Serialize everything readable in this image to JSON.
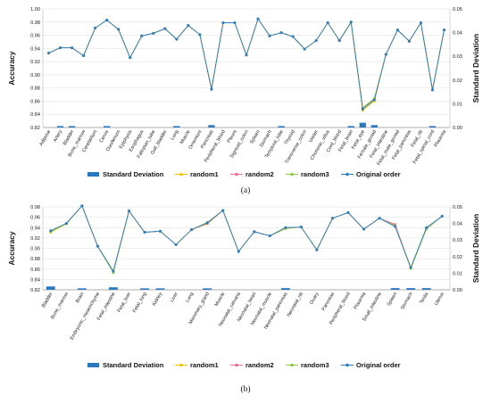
{
  "colors": {
    "std": "#2a78c0",
    "random1": "#f5c400",
    "random2": "#f06aa0",
    "random3": "#8ecb3c",
    "original": "#2b7cc7",
    "grid": "#dddddd"
  },
  "chart_data": [
    {
      "type": "line",
      "panel_label": "(a)",
      "ylabel": "Accuracy",
      "y2label": "Standard Deviation",
      "ylim": [
        0.82,
        1.0
      ],
      "yticks": [
        "0.82",
        "0.84",
        "0.86",
        "0.88",
        "0.90",
        "0.92",
        "0.94",
        "0.96",
        "0.98",
        "1.00"
      ],
      "y2lim": [
        0,
        0.05
      ],
      "y2ticks": [
        "0.00",
        "0.01",
        "0.02",
        "0.03",
        "0.04",
        "0.05"
      ],
      "legend": [
        "Standard Deviation",
        "random1",
        "random2",
        "random3",
        "Original order"
      ],
      "categories": [
        "Adipose",
        "Artery",
        "Bladder",
        "Bone_marrow",
        "Cerebellum",
        "Cervix",
        "Duodenum",
        "Epiphysis",
        "Esophagus",
        "Fallopian_tube",
        "Gall_bladder",
        "Lung",
        "Muscle",
        "Omentum",
        "Pancreas",
        "Peripheral_blood",
        "Pleura",
        "Sigmoid_colon",
        "Spleen",
        "Stomach",
        "Temporal_lobe",
        "Thyroid",
        "Transverse_colon",
        "Ureter",
        "Chorionic_villus",
        "Cord_blood",
        "Fetal_brain",
        "Fetal_eye",
        "Female_gonad",
        "Fetal_intestine",
        "Fetal_male_gonad",
        "Fetal_pancreas",
        "Fetal_rib",
        "Fetal_spinal_cord",
        "Placenta"
      ],
      "series": [
        {
          "name": "Original order",
          "values": [
            0.933,
            0.941,
            0.941,
            0.929,
            0.971,
            0.983,
            0.969,
            0.926,
            0.959,
            0.963,
            0.97,
            0.954,
            0.975,
            0.961,
            0.878,
            0.979,
            0.979,
            0.93,
            0.985,
            0.959,
            0.964,
            0.958,
            0.939,
            0.952,
            0.979,
            0.952,
            0.98,
            0.848,
            0.862,
            0.931,
            0.968,
            0.951,
            0.979,
            0.877,
            0.968
          ]
        },
        {
          "name": "random1",
          "values": [
            0.933,
            0.941,
            0.941,
            0.929,
            0.971,
            0.983,
            0.969,
            0.926,
            0.959,
            0.963,
            0.97,
            0.954,
            0.975,
            0.961,
            0.878,
            0.979,
            0.979,
            0.93,
            0.985,
            0.959,
            0.964,
            0.958,
            0.939,
            0.952,
            0.979,
            0.952,
            0.98,
            0.846,
            0.86,
            0.931,
            0.968,
            0.951,
            0.979,
            0.877,
            0.968
          ]
        },
        {
          "name": "random2",
          "values": [
            0.933,
            0.941,
            0.941,
            0.929,
            0.971,
            0.983,
            0.969,
            0.926,
            0.959,
            0.963,
            0.97,
            0.954,
            0.975,
            0.961,
            0.878,
            0.979,
            0.979,
            0.93,
            0.985,
            0.959,
            0.964,
            0.958,
            0.939,
            0.952,
            0.979,
            0.952,
            0.98,
            0.849,
            0.863,
            0.931,
            0.968,
            0.951,
            0.979,
            0.877,
            0.968
          ]
        },
        {
          "name": "random3",
          "values": [
            0.933,
            0.941,
            0.941,
            0.929,
            0.971,
            0.983,
            0.969,
            0.926,
            0.959,
            0.963,
            0.97,
            0.954,
            0.975,
            0.961,
            0.878,
            0.979,
            0.979,
            0.93,
            0.985,
            0.959,
            0.964,
            0.958,
            0.939,
            0.952,
            0.979,
            0.952,
            0.98,
            0.85,
            0.864,
            0.931,
            0.968,
            0.951,
            0.979,
            0.877,
            0.968
          ]
        }
      ],
      "std": [
        0,
        0.0005,
        0.0005,
        0,
        0,
        0.0005,
        0,
        0,
        0,
        0,
        0,
        0.0005,
        0,
        0,
        0.001,
        0,
        0,
        0,
        0,
        0,
        0.0005,
        0,
        0,
        0,
        0,
        0,
        0.0005,
        0.002,
        0.001,
        0,
        0,
        0,
        0,
        0.0005,
        0
      ]
    },
    {
      "type": "line",
      "panel_label": "(b)",
      "ylabel": "Accuracy",
      "y2label": "Standard Deviation",
      "ylim": [
        0.82,
        0.98
      ],
      "yticks": [
        "0.82",
        "0.84",
        "0.86",
        "0.88",
        "0.90",
        "0.92",
        "0.94",
        "0.96",
        "0.98"
      ],
      "y2lim": [
        0,
        0.05
      ],
      "y2ticks": [
        "0.00",
        "0.01",
        "0.02",
        "0.03",
        "0.04",
        "0.05"
      ],
      "legend": [
        "Standard Deviation",
        "random1",
        "random2",
        "random3",
        "Original order"
      ],
      "categories": [
        "Bladder",
        "Bone_marrow",
        "Brain",
        "Embryonic_mesenchyme",
        "Fetal_intestine",
        "Fetal_liver",
        "Fetal_lung",
        "Kidney",
        "Liver",
        "Lung",
        "Mammary_gland",
        "Muscle",
        "Neonatal_calvaria",
        "Neonatal_heart",
        "Neonatal_muscle",
        "Neonatal_pancreas",
        "Neonatal_rib",
        "Ovary",
        "Pancreas",
        "Peripheral_blood",
        "Placenta",
        "Small_intestine",
        "Spleen",
        "Stomach",
        "Testis",
        "Uterus"
      ],
      "series": [
        {
          "name": "Original order",
          "values": [
            0.934,
            0.948,
            0.982,
            0.904,
            0.856,
            0.972,
            0.931,
            0.933,
            0.907,
            0.936,
            0.949,
            0.973,
            0.894,
            0.932,
            0.924,
            0.94,
            0.941,
            0.897,
            0.958,
            0.969,
            0.937,
            0.958,
            0.942,
            0.863,
            0.94,
            0.962
          ]
        },
        {
          "name": "random1",
          "values": [
            0.931,
            0.947,
            0.982,
            0.904,
            0.854,
            0.972,
            0.931,
            0.933,
            0.907,
            0.936,
            0.947,
            0.973,
            0.894,
            0.932,
            0.924,
            0.938,
            0.941,
            0.897,
            0.958,
            0.969,
            0.937,
            0.958,
            0.945,
            0.861,
            0.938,
            0.962
          ]
        },
        {
          "name": "random2",
          "values": [
            0.933,
            0.948,
            0.982,
            0.904,
            0.855,
            0.972,
            0.931,
            0.933,
            0.907,
            0.936,
            0.948,
            0.973,
            0.894,
            0.932,
            0.924,
            0.939,
            0.941,
            0.897,
            0.958,
            0.969,
            0.937,
            0.958,
            0.946,
            0.862,
            0.939,
            0.962
          ]
        },
        {
          "name": "random3",
          "values": [
            0.932,
            0.948,
            0.982,
            0.904,
            0.853,
            0.972,
            0.931,
            0.933,
            0.907,
            0.936,
            0.95,
            0.973,
            0.894,
            0.932,
            0.924,
            0.939,
            0.941,
            0.897,
            0.958,
            0.969,
            0.937,
            0.958,
            0.943,
            0.861,
            0.937,
            0.962
          ]
        }
      ],
      "std": [
        0.002,
        0,
        0.0005,
        0,
        0.0015,
        0,
        0.0005,
        0.0005,
        0,
        0,
        0.0005,
        0,
        0,
        0,
        0,
        0.001,
        0,
        0,
        0,
        0,
        0,
        0,
        0.001,
        0.001,
        0.001,
        0
      ]
    }
  ]
}
